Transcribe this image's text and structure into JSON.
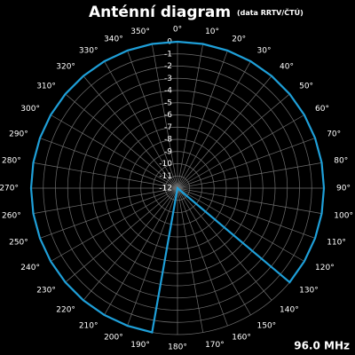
{
  "chart_data": {
    "type": "polar",
    "title": "Anténní diagram",
    "subtitle": "(data RRTV/ČTÚ)",
    "annotation": "96.0 MHz",
    "angles": [
      0,
      10,
      20,
      30,
      40,
      50,
      60,
      70,
      80,
      90,
      100,
      110,
      120,
      130,
      140,
      150,
      160,
      170,
      180,
      190,
      200,
      210,
      220,
      230,
      240,
      250,
      260,
      270,
      280,
      290,
      300,
      310,
      320,
      330,
      340,
      350
    ],
    "values": [
      0,
      0,
      0,
      0,
      0,
      0,
      0,
      0,
      0,
      0,
      0,
      0,
      0,
      0,
      -12,
      -12,
      -12,
      -12,
      -12,
      0,
      0,
      0,
      0,
      0,
      0,
      0,
      0,
      0,
      0,
      0,
      0,
      0,
      0,
      0,
      0,
      0
    ],
    "color": "#1e9fd8",
    "rlim": [
      -12,
      0
    ],
    "rticks": [
      0,
      -1,
      -2,
      -3,
      -4,
      -5,
      -6,
      -7,
      -8,
      -9,
      -10,
      -11,
      -12
    ],
    "angleticks": [
      {
        "value": 0,
        "label": "0°"
      },
      {
        "value": 10,
        "label": "10°"
      },
      {
        "value": 20,
        "label": "20°"
      },
      {
        "value": 30,
        "label": "30°"
      },
      {
        "value": 40,
        "label": "40°"
      },
      {
        "value": 50,
        "label": "50°"
      },
      {
        "value": 60,
        "label": "60°"
      },
      {
        "value": 70,
        "label": "70°"
      },
      {
        "value": 80,
        "label": "80°"
      },
      {
        "value": 90,
        "label": "90°"
      },
      {
        "value": 100,
        "label": "100°"
      },
      {
        "value": 110,
        "label": "110°"
      },
      {
        "value": 120,
        "label": "120°"
      },
      {
        "value": 130,
        "label": "130°"
      },
      {
        "value": 140,
        "label": "140°"
      },
      {
        "value": 150,
        "label": "150°"
      },
      {
        "value": 160,
        "label": "160°"
      },
      {
        "value": 170,
        "label": "170°"
      },
      {
        "value": 180,
        "label": "180°"
      },
      {
        "value": 190,
        "label": "190°"
      },
      {
        "value": 200,
        "label": "200°"
      },
      {
        "value": 210,
        "label": "210°"
      },
      {
        "value": 220,
        "label": "220°"
      },
      {
        "value": 230,
        "label": "230°"
      },
      {
        "value": 240,
        "label": "240°"
      },
      {
        "value": 250,
        "label": "250°"
      },
      {
        "value": 260,
        "label": "260°"
      },
      {
        "value": 270,
        "label": "270°"
      },
      {
        "value": 280,
        "label": "280°"
      },
      {
        "value": 290,
        "label": "290°"
      },
      {
        "value": 300,
        "label": "300°"
      },
      {
        "value": 310,
        "label": "310°"
      },
      {
        "value": 320,
        "label": "320°"
      },
      {
        "value": 330,
        "label": "330°"
      },
      {
        "value": 340,
        "label": "340°"
      },
      {
        "value": 350,
        "label": "350°"
      }
    ],
    "grid": true
  }
}
